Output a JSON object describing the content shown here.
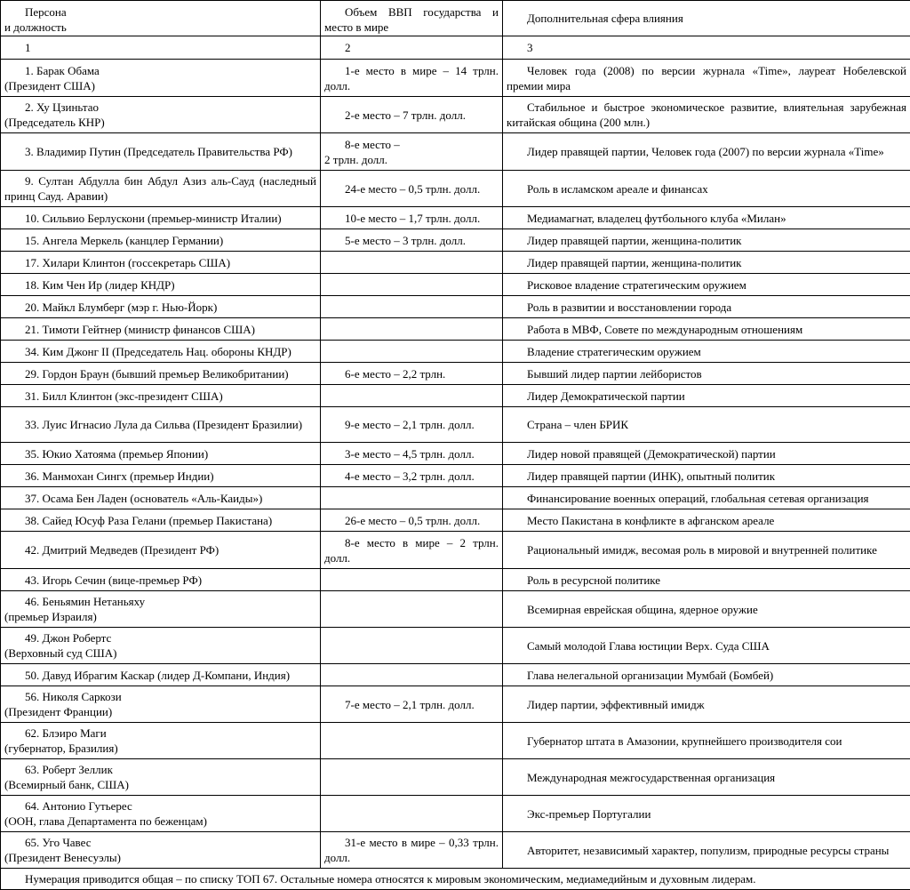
{
  "header": [
    "Персона\nи должность",
    "Объем ВВП государства и место в мире",
    "Дополнительная сфера влияния"
  ],
  "column_numbers": [
    "1",
    "2",
    "3"
  ],
  "rows": [
    [
      "1. Барак Обама\n(Президент США)",
      "1-е место в мире – 14 трлн. долл.",
      "Человек года (2008) по версии журнала «Time», лауреат Нобелевской премии мира"
    ],
    [
      "2. Ху Цзиньтао\n(Председатель КНР)",
      "2-е место – 7 трлн. долл.",
      "Стабильное и быстрое экономическое развитие, влиятельная зарубежная китайская община (200 млн.)"
    ],
    [
      "3. Владимир Путин (Председатель Правительства РФ)",
      "8-е место –\n2 трлн. долл.",
      "Лидер правящей партии, Человек года (2007) по версии журнала «Time»"
    ],
    [
      "9. Султан Абдулла бин Абдул Азиз аль-Сауд (наследный принц Сауд. Аравии)",
      "24-е место – 0,5 трлн. долл.",
      "Роль в исламском ареале и финансах"
    ],
    [
      "10. Сильвио Берлускони (премьер-министр Италии)",
      "10-е место – 1,7 трлн. долл.",
      "Медиамагнат, владелец футбольного клуба «Милан»"
    ],
    [
      "15. Ангела Меркель (канцлер Германии)",
      "5-е место – 3 трлн. долл.",
      "Лидер правящей партии, женщина-политик"
    ],
    [
      "17. Хилари Клинтон (госсекретарь США)",
      "",
      "Лидер правящей партии, женщина-политик"
    ],
    [
      "18. Ким Чен Ир (лидер КНДР)",
      "",
      "Рисковое владение стратегическим оружием"
    ],
    [
      "20. Майкл Блумберг (мэр г. Нью-Йорк)",
      "",
      "Роль в развитии и восстановлении города"
    ],
    [
      "21. Тимоти Гейтнер (министр финансов США)",
      "",
      "Работа в МВФ, Совете по международным отношениям"
    ],
    [
      "34. Ким Джонг II (Председатель Нац. обороны КНДР)",
      "",
      "Владение стратегическим оружием"
    ],
    [
      "29. Гордон Браун (бывший премьер Великобритании)",
      "6-е место – 2,2 трлн.",
      "Бывший лидер партии лейбористов"
    ],
    [
      "31. Билл Клинтон (экс-президент США)",
      "",
      "Лидер Демократической партии"
    ],
    [
      "33. Луис Игнасио Лула да Сильва (Президент Бразилии)",
      "9-е место – 2,1 трлн. долл.",
      "Страна – член БРИК"
    ],
    [
      "35. Юкио Хатояма (премьер Японии)",
      "3-е место – 4,5 трлн. долл.",
      "Лидер новой правящей (Демократической) партии"
    ],
    [
      "36. Манмохан Сингх (премьер Индии)",
      "4-е место – 3,2 трлн. долл.",
      "Лидер правящей партии (ИНК), опытный политик"
    ],
    [
      "37. Осама Бен Ладен (основатель «Аль-Каиды»)",
      "",
      "Финансирование военных операций, глобальная сетевая организация"
    ],
    [
      "38. Сайед Юсуф Раза Гелани (премьер Пакистана)",
      "26-е место – 0,5 трлн. долл.",
      "Место Пакистана в конфликте в афганском ареале"
    ],
    [
      "42. Дмитрий Медведев (Президент РФ)",
      "8-е место в мире – 2 трлн. долл.",
      "Рациональный имидж, весомая роль в мировой и внутренней политике"
    ],
    [
      "43. Игорь Сечин (вице-премьер РФ)",
      "",
      "Роль в ресурсной политике"
    ],
    [
      "46. Беньямин Нетаньяху\n(премьер Израиля)",
      "",
      "Всемирная еврейская община, ядерное оружие"
    ],
    [
      "49. Джон Робертс\n(Верховный суд США)",
      "",
      "Самый молодой Глава юстиции Верх. Суда США"
    ],
    [
      "50. Давуд Ибрагим Каскар (лидер Д-Компани, Индия)",
      "",
      "Глава нелегальной организации Мумбай (Бомбей)"
    ],
    [
      "56. Николя Саркози\n(Президент Франции)",
      "7-е место – 2,1 трлн. долл.",
      "Лидер партии, эффективный имидж"
    ],
    [
      "62. Блэиро Маги\n(губернатор, Бразилия)",
      "",
      "Губернатор штата в Амазонии, крупнейшего производителя сои"
    ],
    [
      "63. Роберт Зеллик\n(Всемирный банк, США)",
      "",
      "Международная межгосударственная организация"
    ],
    [
      "64. Антонио Гутьерес\n(ООН, глава Департамента по беженцам)",
      "",
      "Экс-премьер Португалии"
    ],
    [
      "65. Уго Чавес\n(Президент Венесуэлы)",
      "31-е место в мире – 0,33 трлн. долл.",
      "Авторитет, независимый характер, популизм, природные ресурсы страны"
    ]
  ],
  "footer": "Нумерация приводится общая – по списку ТОП 67. Остальные номера относятся к мировым экономическим, медиамедийным и духовным лидерам."
}
